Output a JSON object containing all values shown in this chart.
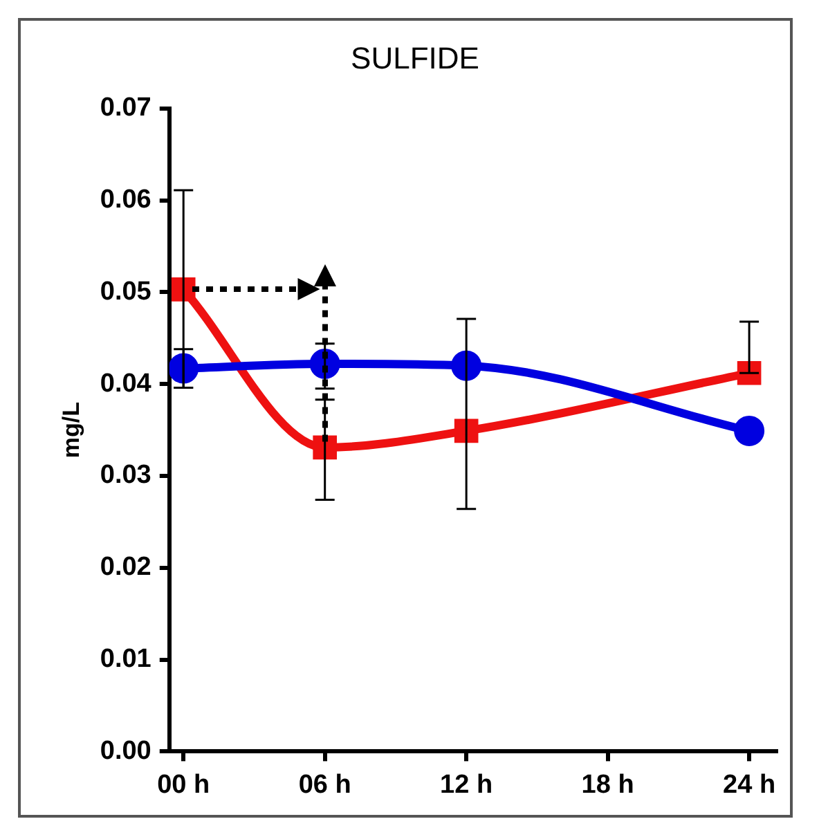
{
  "chart_data": {
    "type": "line",
    "title": "SULFIDE",
    "ylabel": "mg/L",
    "x": [
      0,
      6,
      12,
      24
    ],
    "xlim": [
      -0.6,
      25.2
    ],
    "xticks": [
      {
        "value": 0,
        "label": "00 h"
      },
      {
        "value": 6,
        "label": "06 h"
      },
      {
        "value": 12,
        "label": "12 h"
      },
      {
        "value": 18,
        "label": "18 h"
      },
      {
        "value": 24,
        "label": "24 h"
      }
    ],
    "ylim": [
      0,
      0.07
    ],
    "yticks": [
      {
        "value": 0,
        "label": "0.00"
      },
      {
        "value": 0.01,
        "label": "0.01"
      },
      {
        "value": 0.02,
        "label": "0.02"
      },
      {
        "value": 0.03,
        "label": "0.03"
      },
      {
        "value": 0.04,
        "label": "0.04"
      },
      {
        "value": 0.05,
        "label": "0.05"
      },
      {
        "value": 0.06,
        "label": "0.06"
      },
      {
        "value": 0.07,
        "label": "0.07"
      }
    ],
    "grid": false,
    "legend": false,
    "series": [
      {
        "color": "#0000e0",
        "marker": "circle",
        "values": [
          0.0417,
          0.0422,
          0.042,
          0.0349
        ],
        "errors": [
          [
            0.0396,
            0.0438
          ],
          [
            0.0395,
            0.0444
          ],
          null,
          null
        ]
      },
      {
        "color": "#ee1111",
        "marker": "square",
        "values": [
          0.0503,
          0.0331,
          0.0349,
          0.0412
        ],
        "errors": [
          [
            0.0396,
            0.0611
          ],
          [
            0.0274,
            0.0383
          ],
          [
            0.0264,
            0.0471
          ],
          [
            0.0412,
            0.0468
          ]
        ]
      }
    ]
  }
}
